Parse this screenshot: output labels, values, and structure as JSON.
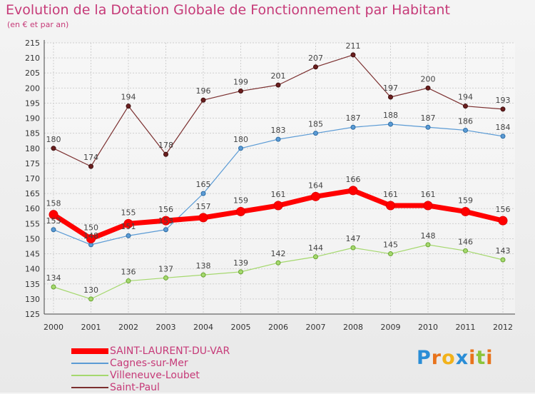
{
  "title": "Evolution de la Dotation Globale de Fonctionnement par Habitant",
  "subtitle": "(en € et par an)",
  "chart_data": {
    "type": "line",
    "x": [
      "2000",
      "2001",
      "2002",
      "2003",
      "2004",
      "2005",
      "2006",
      "2007",
      "2008",
      "2009",
      "2010",
      "2011",
      "2012"
    ],
    "ylim": [
      125,
      215
    ],
    "yticks": [
      125,
      130,
      135,
      140,
      145,
      150,
      155,
      160,
      165,
      170,
      175,
      180,
      185,
      190,
      195,
      200,
      205,
      210,
      215
    ],
    "grid": true,
    "legend": "bottom-left",
    "series": [
      {
        "name": "SAINT-LAURENT-DU-VAR",
        "color": "#ff0000",
        "values": [
          158,
          150,
          155,
          156,
          157,
          159,
          161,
          164,
          166,
          161,
          161,
          159,
          156
        ]
      },
      {
        "name": "Cagnes-sur-Mer",
        "color": "#5b9bd5",
        "values": [
          153,
          148,
          151,
          153,
          165,
          180,
          183,
          185,
          187,
          188,
          187,
          186,
          184
        ]
      },
      {
        "name": "Villeneuve-Loubet",
        "color": "#a5d86e",
        "values": [
          134,
          130,
          136,
          137,
          138,
          139,
          142,
          144,
          147,
          145,
          148,
          146,
          143
        ]
      },
      {
        "name": "Saint-Paul",
        "color": "#7b2f2f",
        "values": [
          180,
          174,
          194,
          178,
          196,
          199,
          201,
          207,
          211,
          197,
          200,
          194,
          193
        ]
      }
    ]
  },
  "logo": {
    "letters": [
      "P",
      "r",
      "o",
      "x",
      "i",
      "t",
      "i"
    ],
    "colors": [
      "#2a8dd6",
      "#e8731c",
      "#f2b21a",
      "#2a8dd6",
      "#e8731c",
      "#8cc43a",
      "#e8731c"
    ]
  }
}
